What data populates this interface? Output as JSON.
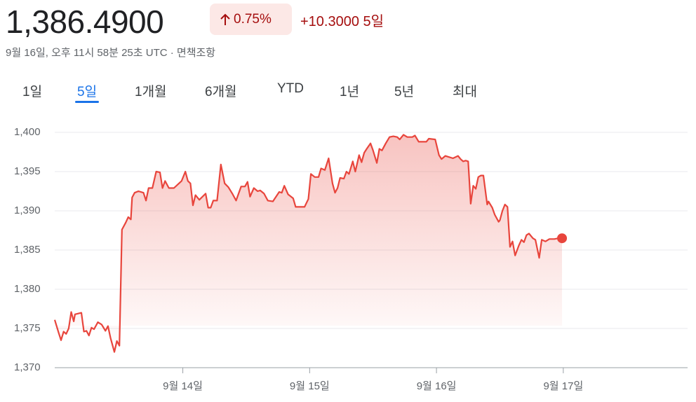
{
  "header": {
    "price": "1,386.4900",
    "change_percent": "0.75%",
    "change": "+10.3000",
    "period": "5일",
    "timestamp": "9월 16일, 오후 11시 58분 25초 UTC · 면책조항"
  },
  "tabs": [
    "1일",
    "5일",
    "1개월",
    "6개월",
    "YTD",
    "1년",
    "5년",
    "최대"
  ],
  "active_tab": 1,
  "chart_data": {
    "type": "line",
    "color": "#e8453c",
    "grid": true,
    "x": [
      12.99,
      13.02,
      13.04,
      13.06,
      13.08,
      13.1,
      13.12,
      13.14,
      13.15,
      13.2,
      13.22,
      13.24,
      13.26,
      13.28,
      13.3,
      13.33,
      13.36,
      13.39,
      13.41,
      13.43,
      13.46,
      13.48,
      13.5,
      13.52,
      13.55,
      13.57,
      13.59,
      13.6,
      13.62,
      13.65,
      13.69,
      13.71,
      13.73,
      13.76,
      13.79,
      13.82,
      13.84,
      13.86,
      13.89,
      13.93,
      13.97,
      13.99,
      14.02,
      14.04,
      14.06,
      14.08,
      14.1,
      14.13,
      14.18,
      14.2,
      14.22,
      14.24,
      14.27,
      14.3,
      14.33,
      14.36,
      14.39,
      14.42,
      14.46,
      14.49,
      14.51,
      14.53,
      14.56,
      14.59,
      14.61,
      14.64,
      14.67,
      14.71,
      14.76,
      14.78,
      14.8,
      14.83,
      14.87,
      14.89,
      14.96,
      14.99,
      15.01,
      15.04,
      15.07,
      15.09,
      15.12,
      15.15,
      15.18,
      15.2,
      15.22,
      15.24,
      15.27,
      15.29,
      15.31,
      15.34,
      15.36,
      15.39,
      15.41,
      15.43,
      15.45,
      15.48,
      15.5,
      15.53,
      15.55,
      15.57,
      15.6,
      15.63,
      15.66,
      15.69,
      15.71,
      15.74,
      15.77,
      15.81,
      15.83,
      15.86,
      15.92,
      15.94,
      15.99,
      16.02,
      16.04,
      16.07,
      16.13,
      16.17,
      16.19,
      16.21,
      16.23,
      16.25,
      16.27,
      16.29,
      16.31,
      16.33,
      16.35,
      16.37,
      16.4,
      16.41,
      16.44,
      16.46,
      16.49,
      16.5,
      16.52,
      16.54,
      16.56,
      16.58,
      16.6,
      16.62,
      16.65,
      16.67,
      16.69,
      16.71,
      16.73,
      16.76,
      16.78,
      16.81,
      16.83,
      16.86,
      16.89,
      16.93,
      16.96,
      16.99
    ],
    "values": [
      1376.1,
      1374.5,
      1373.5,
      1374.6,
      1374.3,
      1375.0,
      1377.1,
      1375.9,
      1376.8,
      1377.0,
      1374.6,
      1374.7,
      1374.1,
      1375.1,
      1374.9,
      1375.8,
      1375.5,
      1374.7,
      1375.3,
      1373.8,
      1372.0,
      1373.4,
      1372.8,
      1387.6,
      1388.5,
      1389.2,
      1388.9,
      1391.7,
      1392.3,
      1392.5,
      1392.3,
      1391.3,
      1392.9,
      1392.9,
      1395.0,
      1394.9,
      1392.9,
      1393.8,
      1392.9,
      1392.9,
      1393.5,
      1393.8,
      1395.0,
      1393.8,
      1393.5,
      1390.7,
      1392.0,
      1391.4,
      1392.2,
      1390.4,
      1390.4,
      1391.3,
      1391.3,
      1395.9,
      1393.5,
      1393.0,
      1392.2,
      1391.3,
      1393.1,
      1393.1,
      1393.7,
      1391.8,
      1392.9,
      1392.5,
      1392.6,
      1392.2,
      1391.3,
      1391.2,
      1392.4,
      1392.3,
      1393.2,
      1392.1,
      1391.6,
      1390.5,
      1390.5,
      1391.5,
      1394.7,
      1394.3,
      1394.3,
      1395.4,
      1395.2,
      1396.7,
      1393.5,
      1392.3,
      1392.9,
      1394.2,
      1394.1,
      1395.0,
      1394.7,
      1396.3,
      1395.0,
      1397.1,
      1396.2,
      1397.4,
      1397.9,
      1398.6,
      1397.7,
      1396.1,
      1397.9,
      1397.7,
      1398.6,
      1399.4,
      1399.5,
      1399.4,
      1399.1,
      1399.7,
      1399.4,
      1399.4,
      1399.6,
      1398.8,
      1398.8,
      1399.2,
      1399.1,
      1397.1,
      1396.6,
      1397.0,
      1396.7,
      1397.0,
      1396.6,
      1396.3,
      1396.4,
      1396.3,
      1390.9,
      1393.2,
      1392.8,
      1394.3,
      1394.5,
      1394.5,
      1390.8,
      1391.2,
      1390.4,
      1389.5,
      1388.6,
      1388.8,
      1390.0,
      1390.8,
      1390.5,
      1385.4,
      1386.1,
      1384.3,
      1385.6,
      1386.3,
      1386.0,
      1386.9,
      1387.1,
      1386.5,
      1386.3,
      1384.0,
      1386.3,
      1386.1,
      1386.4,
      1386.4,
      1386.5,
      1386.5
    ],
    "xlim": [
      12.99,
      17.98
    ],
    "xticks": [
      {
        "value": 14,
        "label": "9월 14일"
      },
      {
        "value": 15,
        "label": "9월 15일"
      },
      {
        "value": 16,
        "label": "9월 16일"
      },
      {
        "value": 17,
        "label": "9월 17일"
      }
    ],
    "ylim": [
      1370,
      1400
    ],
    "yticks": [
      {
        "value": 1370,
        "label": "1,370"
      },
      {
        "value": 1375,
        "label": "1,375"
      },
      {
        "value": 1380,
        "label": "1,380"
      },
      {
        "value": 1385,
        "label": "1,385"
      },
      {
        "value": 1390,
        "label": "1,390"
      },
      {
        "value": 1395,
        "label": "1,395"
      },
      {
        "value": 1400,
        "label": "1,400"
      }
    ]
  }
}
